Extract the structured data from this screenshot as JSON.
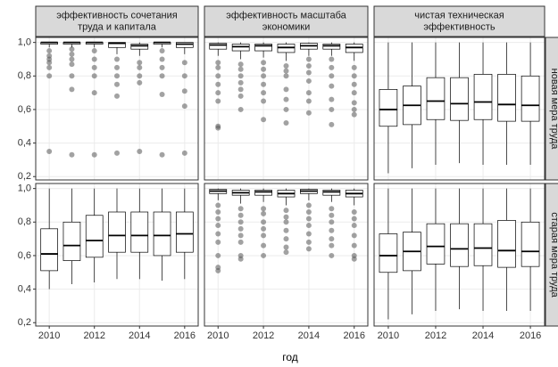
{
  "chart_data": {
    "type": "box",
    "columns": [
      [
        "эффективность сочетания",
        "труда и капитала"
      ],
      [
        "эффективность масштаба",
        "экономики"
      ],
      [
        "чистая техническая",
        "эффективность"
      ]
    ],
    "rows": [
      "новая мера труда",
      "старая мера труда"
    ],
    "x_label": "год",
    "x": [
      2010,
      2011,
      2012,
      2013,
      2014,
      2015,
      2016
    ],
    "xlim": [
      2009.4,
      2016.6
    ],
    "xticks": [
      2010,
      2012,
      2014,
      2016
    ],
    "ylim": [
      0.18,
      1.03
    ],
    "yticks": [
      {
        "value": 0.2,
        "label": "0,2"
      },
      {
        "value": 0.4,
        "label": "0,4"
      },
      {
        "value": 0.6,
        "label": "0,6"
      },
      {
        "value": 0.8,
        "label": "0,8"
      },
      {
        "value": 1.0,
        "label": "1,0"
      }
    ],
    "grid": true,
    "box_color": "#000000",
    "outlier_color": "#555555",
    "panels": [
      [
        {
          "boxes": [
            {
              "whisker_low": 0.97,
              "q1": 0.99,
              "median": 1.0,
              "q3": 1.0,
              "whisker_high": 1.0,
              "outliers": [
                0.95,
                0.92,
                0.9,
                0.88,
                0.85,
                0.8,
                0.35
              ]
            },
            {
              "whisker_low": 0.97,
              "q1": 0.99,
              "median": 1.0,
              "q3": 1.0,
              "whisker_high": 1.0,
              "outliers": [
                0.96,
                0.93,
                0.9,
                0.87,
                0.8,
                0.72,
                0.33
              ]
            },
            {
              "whisker_low": 0.97,
              "q1": 0.99,
              "median": 1.0,
              "q3": 1.0,
              "whisker_high": 1.0,
              "outliers": [
                0.95,
                0.9,
                0.85,
                0.8,
                0.7,
                0.33
              ]
            },
            {
              "whisker_low": 0.93,
              "q1": 0.97,
              "median": 0.995,
              "q3": 1.0,
              "whisker_high": 1.0,
              "outliers": [
                0.9,
                0.85,
                0.8,
                0.75,
                0.68,
                0.34
              ]
            },
            {
              "whisker_low": 0.92,
              "q1": 0.96,
              "median": 0.98,
              "q3": 0.99,
              "whisker_high": 1.0,
              "outliers": [
                0.88,
                0.85,
                0.8,
                0.76,
                0.35
              ]
            },
            {
              "whisker_low": 0.97,
              "q1": 0.99,
              "median": 1.0,
              "q3": 1.0,
              "whisker_high": 1.0,
              "outliers": [
                0.95,
                0.9,
                0.85,
                0.8,
                0.69,
                0.33
              ]
            },
            {
              "whisker_low": 0.93,
              "q1": 0.97,
              "median": 0.99,
              "q3": 1.0,
              "whisker_high": 1.0,
              "outliers": [
                0.88,
                0.8,
                0.71,
                0.62,
                0.34
              ]
            }
          ]
        },
        {
          "boxes": [
            {
              "whisker_low": 0.92,
              "q1": 0.96,
              "median": 0.985,
              "q3": 0.995,
              "whisker_high": 1.0,
              "outliers": [
                0.88,
                0.85,
                0.8,
                0.75,
                0.7,
                0.65,
                0.5,
                0.49
              ]
            },
            {
              "whisker_low": 0.9,
              "q1": 0.95,
              "median": 0.975,
              "q3": 0.99,
              "whisker_high": 1.0,
              "outliers": [
                0.87,
                0.84,
                0.8,
                0.76,
                0.72,
                0.68,
                0.6
              ]
            },
            {
              "whisker_low": 0.91,
              "q1": 0.95,
              "median": 0.98,
              "q3": 0.99,
              "whisker_high": 1.0,
              "outliers": [
                0.88,
                0.84,
                0.8,
                0.75,
                0.7,
                0.65,
                0.54
              ]
            },
            {
              "whisker_low": 0.89,
              "q1": 0.94,
              "median": 0.97,
              "q3": 0.99,
              "whisker_high": 1.0,
              "outliers": [
                0.86,
                0.83,
                0.8,
                0.72,
                0.66,
                0.6,
                0.52
              ]
            },
            {
              "whisker_low": 0.92,
              "q1": 0.96,
              "median": 0.98,
              "q3": 0.995,
              "whisker_high": 1.0,
              "outliers": [
                0.9,
                0.86,
                0.82,
                0.77,
                0.7,
                0.65,
                0.58
              ]
            },
            {
              "whisker_low": 0.92,
              "q1": 0.96,
              "median": 0.98,
              "q3": 0.99,
              "whisker_high": 1.0,
              "outliers": [
                0.9,
                0.85,
                0.8,
                0.74,
                0.66,
                0.6,
                0.51
              ]
            },
            {
              "whisker_low": 0.89,
              "q1": 0.94,
              "median": 0.97,
              "q3": 0.99,
              "whisker_high": 1.0,
              "outliers": [
                0.85,
                0.8,
                0.75,
                0.7,
                0.64,
                0.6,
                0.57
              ]
            }
          ]
        },
        {
          "boxes": [
            {
              "whisker_low": 0.22,
              "q1": 0.5,
              "median": 0.6,
              "q3": 0.72,
              "whisker_high": 1.0,
              "outliers": []
            },
            {
              "whisker_low": 0.25,
              "q1": 0.51,
              "median": 0.625,
              "q3": 0.74,
              "whisker_high": 1.0,
              "outliers": []
            },
            {
              "whisker_low": 0.27,
              "q1": 0.54,
              "median": 0.65,
              "q3": 0.79,
              "whisker_high": 1.0,
              "outliers": []
            },
            {
              "whisker_low": 0.28,
              "q1": 0.535,
              "median": 0.635,
              "q3": 0.79,
              "whisker_high": 1.0,
              "outliers": []
            },
            {
              "whisker_low": 0.27,
              "q1": 0.54,
              "median": 0.645,
              "q3": 0.81,
              "whisker_high": 1.0,
              "outliers": []
            },
            {
              "whisker_low": 0.27,
              "q1": 0.53,
              "median": 0.63,
              "q3": 0.81,
              "whisker_high": 1.0,
              "outliers": []
            },
            {
              "whisker_low": 0.27,
              "q1": 0.53,
              "median": 0.625,
              "q3": 0.8,
              "whisker_high": 1.0,
              "outliers": []
            }
          ]
        }
      ],
      [
        {
          "boxes": [
            {
              "whisker_low": 0.4,
              "q1": 0.51,
              "median": 0.61,
              "q3": 0.76,
              "whisker_high": 1.0,
              "outliers": []
            },
            {
              "whisker_low": 0.43,
              "q1": 0.57,
              "median": 0.66,
              "q3": 0.8,
              "whisker_high": 1.0,
              "outliers": []
            },
            {
              "whisker_low": 0.44,
              "q1": 0.59,
              "median": 0.69,
              "q3": 0.84,
              "whisker_high": 1.0,
              "outliers": []
            },
            {
              "whisker_low": 0.46,
              "q1": 0.62,
              "median": 0.72,
              "q3": 0.86,
              "whisker_high": 1.0,
              "outliers": []
            },
            {
              "whisker_low": 0.46,
              "q1": 0.62,
              "median": 0.72,
              "q3": 0.86,
              "whisker_high": 1.0,
              "outliers": []
            },
            {
              "whisker_low": 0.45,
              "q1": 0.6,
              "median": 0.72,
              "q3": 0.86,
              "whisker_high": 1.0,
              "outliers": []
            },
            {
              "whisker_low": 0.46,
              "q1": 0.62,
              "median": 0.73,
              "q3": 0.86,
              "whisker_high": 1.0,
              "outliers": []
            }
          ]
        },
        {
          "boxes": [
            {
              "whisker_low": 0.93,
              "q1": 0.97,
              "median": 0.985,
              "q3": 0.995,
              "whisker_high": 1.0,
              "outliers": [
                0.9,
                0.86,
                0.82,
                0.78,
                0.73,
                0.68,
                0.6,
                0.53,
                0.51
              ]
            },
            {
              "whisker_low": 0.91,
              "q1": 0.96,
              "median": 0.975,
              "q3": 0.99,
              "whisker_high": 1.0,
              "outliers": [
                0.88,
                0.84,
                0.8,
                0.76,
                0.72,
                0.68,
                0.6,
                0.58
              ]
            },
            {
              "whisker_low": 0.92,
              "q1": 0.96,
              "median": 0.98,
              "q3": 0.99,
              "whisker_high": 1.0,
              "outliers": [
                0.88,
                0.85,
                0.8,
                0.76,
                0.72,
                0.66,
                0.6
              ]
            },
            {
              "whisker_low": 0.9,
              "q1": 0.95,
              "median": 0.97,
              "q3": 0.99,
              "whisker_high": 1.0,
              "outliers": [
                0.87,
                0.83,
                0.8,
                0.75,
                0.7,
                0.65,
                0.62
              ]
            },
            {
              "whisker_low": 0.93,
              "q1": 0.97,
              "median": 0.985,
              "q3": 0.995,
              "whisker_high": 1.0,
              "outliers": [
                0.9,
                0.86,
                0.82,
                0.78,
                0.73,
                0.68,
                0.64
              ]
            },
            {
              "whisker_low": 0.92,
              "q1": 0.96,
              "median": 0.98,
              "q3": 0.99,
              "whisker_high": 1.0,
              "outliers": [
                0.88,
                0.84,
                0.8,
                0.75,
                0.7,
                0.66,
                0.6
              ]
            },
            {
              "whisker_low": 0.9,
              "q1": 0.95,
              "median": 0.97,
              "q3": 0.99,
              "whisker_high": 1.0,
              "outliers": [
                0.86,
                0.82,
                0.78,
                0.72,
                0.66,
                0.6,
                0.58
              ]
            }
          ]
        },
        {
          "boxes": [
            {
              "whisker_low": 0.22,
              "q1": 0.5,
              "median": 0.6,
              "q3": 0.73,
              "whisker_high": 1.0,
              "outliers": []
            },
            {
              "whisker_low": 0.25,
              "q1": 0.51,
              "median": 0.625,
              "q3": 0.74,
              "whisker_high": 1.0,
              "outliers": []
            },
            {
              "whisker_low": 0.27,
              "q1": 0.55,
              "median": 0.655,
              "q3": 0.79,
              "whisker_high": 1.0,
              "outliers": []
            },
            {
              "whisker_low": 0.28,
              "q1": 0.535,
              "median": 0.64,
              "q3": 0.79,
              "whisker_high": 1.0,
              "outliers": []
            },
            {
              "whisker_low": 0.27,
              "q1": 0.54,
              "median": 0.645,
              "q3": 0.79,
              "whisker_high": 1.0,
              "outliers": []
            },
            {
              "whisker_low": 0.27,
              "q1": 0.53,
              "median": 0.63,
              "q3": 0.81,
              "whisker_high": 1.0,
              "outliers": []
            },
            {
              "whisker_low": 0.27,
              "q1": 0.535,
              "median": 0.625,
              "q3": 0.8,
              "whisker_high": 1.0,
              "outliers": []
            }
          ]
        }
      ]
    ]
  }
}
